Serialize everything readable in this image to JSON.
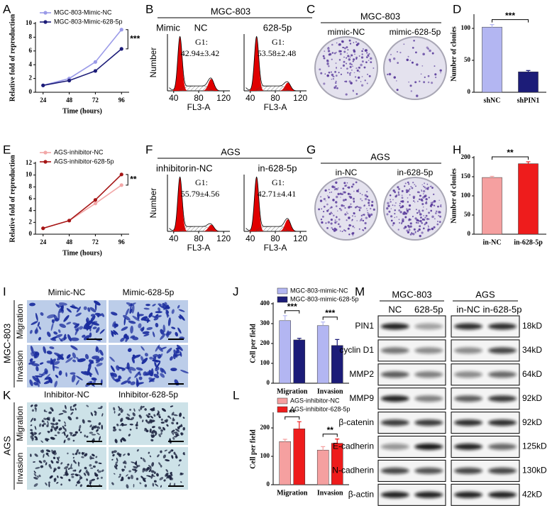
{
  "panel_labels": [
    "A",
    "B",
    "C",
    "D",
    "E",
    "F",
    "G",
    "H",
    "I",
    "J",
    "K",
    "L",
    "M"
  ],
  "chart_data": [
    {
      "type": "line",
      "x": [
        24,
        48,
        72,
        96
      ],
      "xlim": [
        17,
        103
      ],
      "xticks": [
        24,
        48,
        72,
        96
      ],
      "ylim": [
        0,
        10
      ],
      "yticks": [
        0,
        2,
        4,
        6,
        8,
        10
      ],
      "xlabel": "Time (hours)",
      "ylabel": "Relative fold of reproduction",
      "series": [
        {
          "name": "MGC-803-Mimic-NC",
          "color": "#9a9ae8",
          "values": [
            1.0,
            2.0,
            4.4,
            9.1
          ]
        },
        {
          "name": "MGC-803-Mimic-628-5p",
          "color": "#1c1c78",
          "values": [
            1.0,
            1.7,
            3.1,
            6.3
          ]
        }
      ],
      "annotation": "***"
    },
    {
      "type": "bar",
      "categories": [
        "shNC",
        "shPIN1"
      ],
      "values": [
        102,
        32
      ],
      "errors": [
        4,
        2
      ],
      "colors": [
        "#b3b6f2",
        "#1c1c78"
      ],
      "ylim": [
        0,
        120
      ],
      "yticks": [
        0,
        50,
        100
      ],
      "ylabel": "Number of clonies",
      "annotation": "***"
    },
    {
      "type": "line",
      "x": [
        24,
        48,
        72,
        96
      ],
      "xlim": [
        17,
        103
      ],
      "xticks": [
        24,
        48,
        72,
        96
      ],
      "ylim": [
        0,
        12
      ],
      "yticks": [
        0,
        2,
        4,
        6,
        8,
        10,
        12
      ],
      "xlabel": "Time (hours)",
      "ylabel": "Relative fold of reproduction",
      "series": [
        {
          "name": "AGS-inhibitor-NC",
          "color": "#f2a7a7",
          "values": [
            1.0,
            2.3,
            5.2,
            8.3
          ]
        },
        {
          "name": "AGS-inhibitor-628-5p",
          "color": "#a51515",
          "values": [
            1.0,
            2.3,
            5.8,
            10.1
          ]
        }
      ],
      "annotation": "**"
    },
    {
      "type": "bar",
      "categories": [
        "in-NC",
        "in-628-5p"
      ],
      "values": [
        148,
        184
      ],
      "errors": [
        3,
        5
      ],
      "colors": [
        "#f5a0a0",
        "#ee1c1c"
      ],
      "ylim": [
        0,
        200
      ],
      "yticks": [
        0,
        50,
        100,
        150,
        200
      ],
      "ylabel": "Number of clonies",
      "annotation": "**"
    },
    {
      "type": "bar",
      "categories": [
        "Migration",
        "Invasion"
      ],
      "ylim": [
        0,
        400
      ],
      "yticks": [
        0,
        100,
        200,
        300,
        400
      ],
      "ylabel": "Cell per field",
      "series": [
        {
          "name": "MGC-803-mimic-NC",
          "color": "#b3b6f2",
          "values": [
            315,
            290
          ],
          "errors": [
            25,
            18
          ]
        },
        {
          "name": "MGC-803-mimic-628-5p",
          "color": "#1c1c78",
          "values": [
            218,
            190
          ],
          "errors": [
            8,
            30
          ]
        }
      ],
      "annotations": [
        "***",
        "***"
      ]
    },
    {
      "type": "bar",
      "categories": [
        "Migration",
        "Invasion"
      ],
      "ylim": [
        0,
        250
      ],
      "yticks": [
        0,
        100,
        200
      ],
      "ylabel": "Cell per field",
      "series": [
        {
          "name": "AGS-inhibitor-NC",
          "color": "#f5a0a0",
          "values": [
            152,
            122
          ],
          "errors": [
            8,
            12
          ]
        },
        {
          "name": "AGS-inhibitor-628-5p",
          "color": "#ee1c1c",
          "values": [
            197,
            146
          ],
          "errors": [
            25,
            15
          ]
        }
      ],
      "annotations": [
        "**",
        "**"
      ]
    }
  ],
  "flow": {
    "B": {
      "title": "MGC-803",
      "row_label": "Mimic",
      "columns": [
        "NC",
        "628-5p"
      ],
      "g1_label": "G1:",
      "g1_values": [
        "42.94±3.42",
        "53.58±2.48"
      ],
      "ylabel": "Number",
      "xlabel": "FL3-A",
      "xticks": [
        40,
        80,
        120
      ]
    },
    "F": {
      "title": "AGS",
      "row_label": "inhibitor",
      "columns": [
        "in-NC",
        "in-628-5p"
      ],
      "g1_label": "G1:",
      "g1_values": [
        "55.79±4.56",
        "42.71±4.41"
      ],
      "ylabel": "Number",
      "xlabel": "FL3-A",
      "xticks": [
        40,
        80,
        120
      ]
    }
  },
  "dishes": {
    "C": {
      "title": "MGC-803",
      "columns": [
        "mimic-NC",
        "mimic-628-5p"
      ]
    },
    "G": {
      "title": "AGS",
      "columns": [
        "in-NC",
        "in-628-5p"
      ]
    }
  },
  "cells": {
    "I": {
      "cell_line": "MGC-803",
      "columns": [
        "Mimic-NC",
        "Mimic-628-5p"
      ],
      "rows": [
        "Migration",
        "Invasion"
      ]
    },
    "K": {
      "cell_line": "AGS",
      "columns": [
        "Inhibitor-NC",
        "Inhibitor-628-5p"
      ],
      "rows": [
        "Migration",
        "Invasion"
      ]
    }
  },
  "blot": {
    "groups": [
      {
        "name": "MGC-803",
        "lanes": [
          "NC",
          "628-5p"
        ]
      },
      {
        "name": "AGS",
        "lanes": [
          "in-NC",
          "in-628-5p"
        ]
      }
    ],
    "proteins": [
      "PIN1",
      "cyclin D1",
      "MMP2",
      "MMP9",
      "β-catenin",
      "E-cadherin",
      "N-cadherin",
      "β-actin"
    ],
    "sizes": [
      "18kD",
      "34kD",
      "64kD",
      "92kD",
      "92kD",
      "125kD",
      "130kD",
      "42kD"
    ]
  }
}
